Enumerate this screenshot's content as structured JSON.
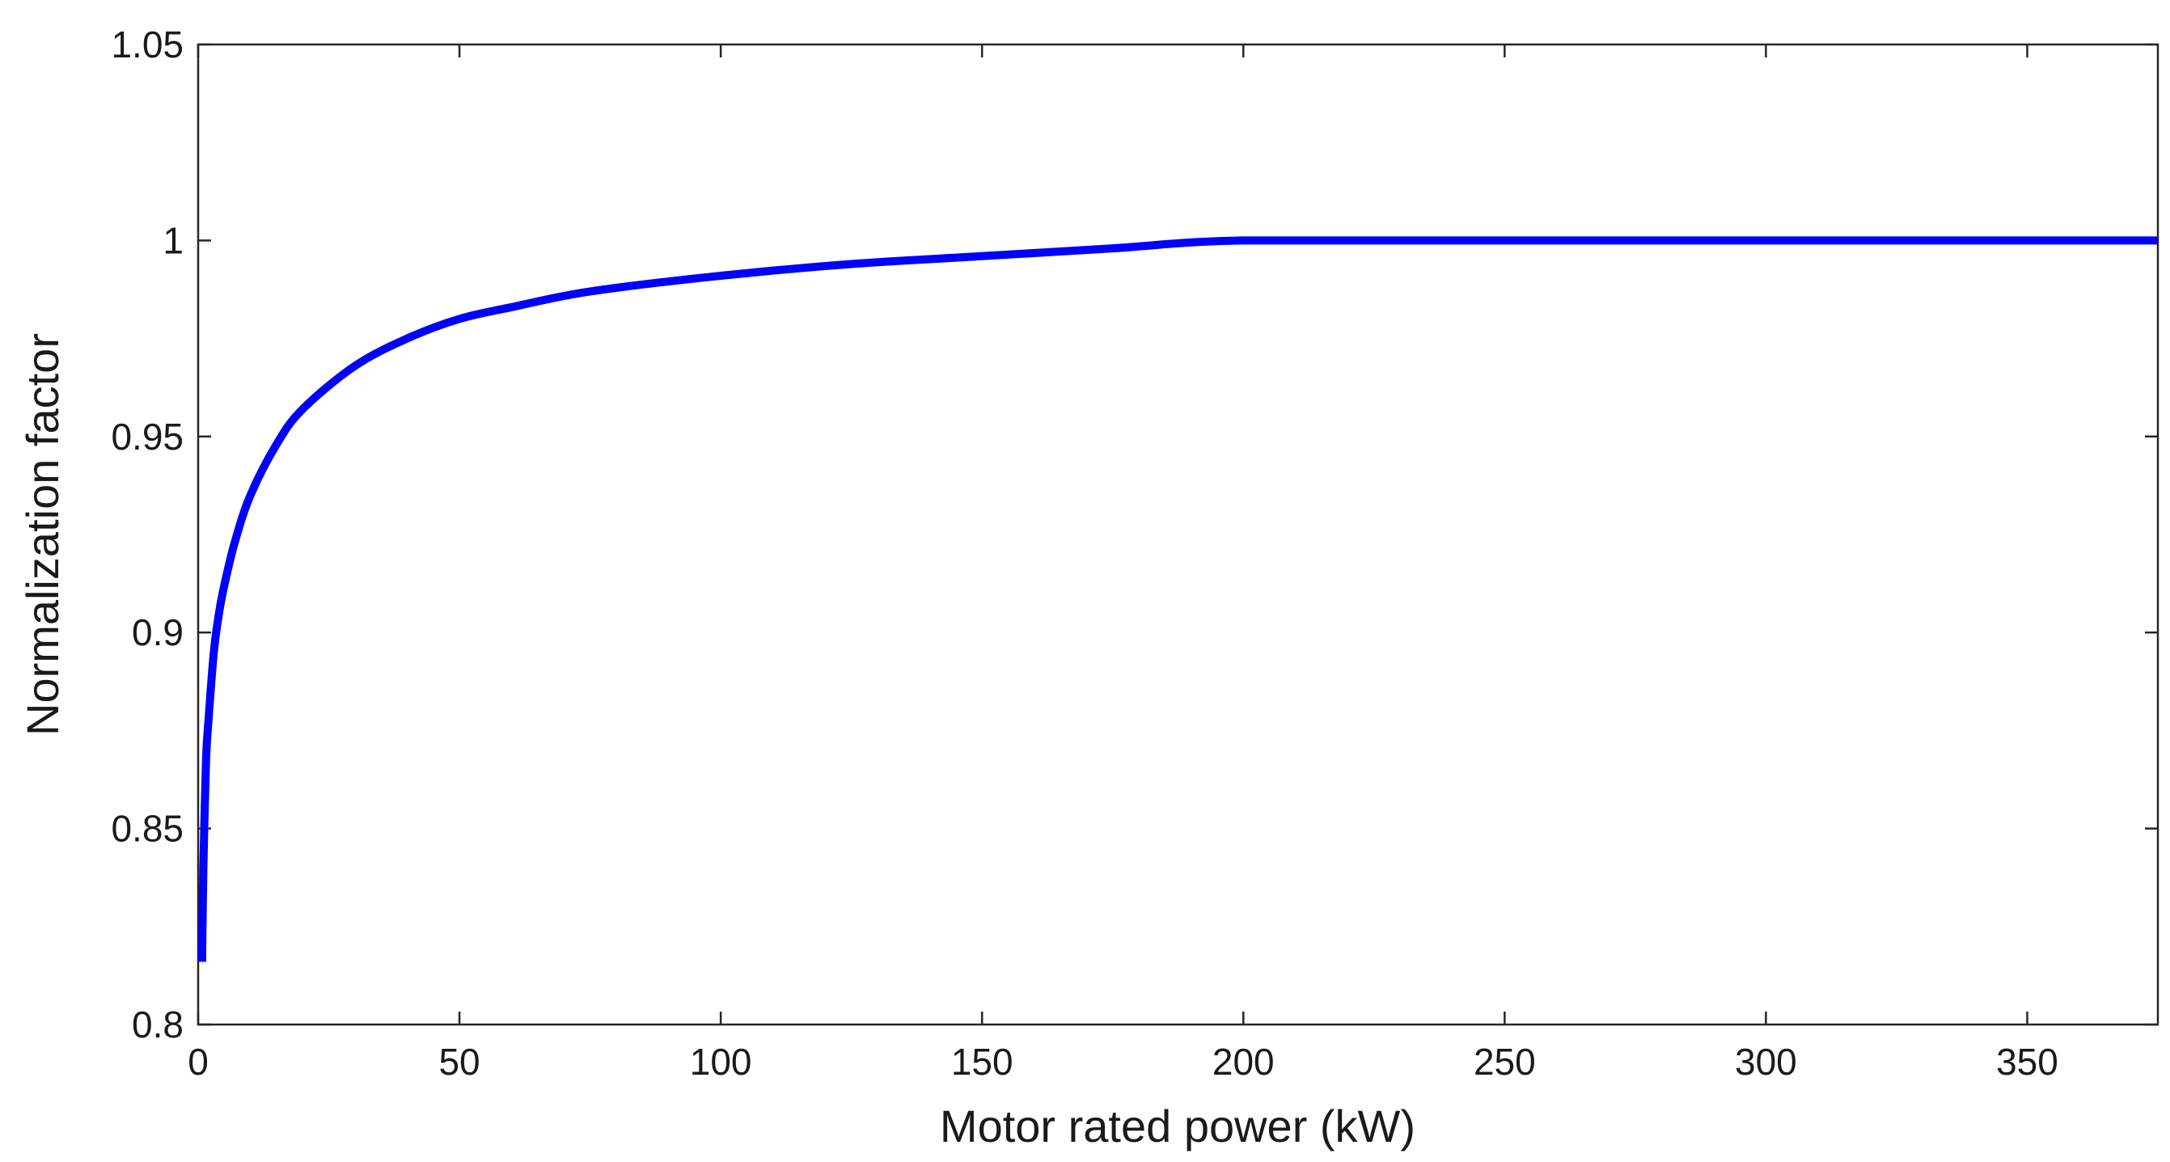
{
  "chart_data": {
    "type": "line",
    "title": "",
    "xlabel": "Motor rated power (kW)",
    "ylabel": "Normalization factor",
    "xlim": [
      0,
      375
    ],
    "ylim": [
      0.8,
      1.05
    ],
    "xticks": [
      0,
      50,
      100,
      150,
      200,
      250,
      300,
      350
    ],
    "xtick_labels": [
      "0",
      "50",
      "100",
      "150",
      "200",
      "250",
      "300",
      "350"
    ],
    "yticks": [
      0.8,
      0.85,
      0.9,
      0.95,
      1.0,
      1.05
    ],
    "ytick_labels": [
      "0.8",
      "0.85",
      "0.9",
      "0.95",
      "1",
      "1.05"
    ],
    "grid": false,
    "legend": null,
    "series": [
      {
        "name": "Normalization factor",
        "color": "#0000ff",
        "x": [
          0.75,
          1,
          1.5,
          2,
          3,
          4,
          5,
          7,
          10,
          15,
          20,
          30,
          40,
          50,
          60,
          75,
          100,
          125,
          150,
          175,
          200,
          250,
          300,
          350,
          375
        ],
        "y": [
          0.816,
          0.84,
          0.867,
          0.878,
          0.895,
          0.905,
          0.912,
          0.923,
          0.935,
          0.948,
          0.957,
          0.968,
          0.975,
          0.98,
          0.983,
          0.987,
          0.991,
          0.994,
          0.996,
          0.998,
          1.0,
          1.0,
          1.0,
          1.0,
          1.0
        ]
      }
    ]
  }
}
